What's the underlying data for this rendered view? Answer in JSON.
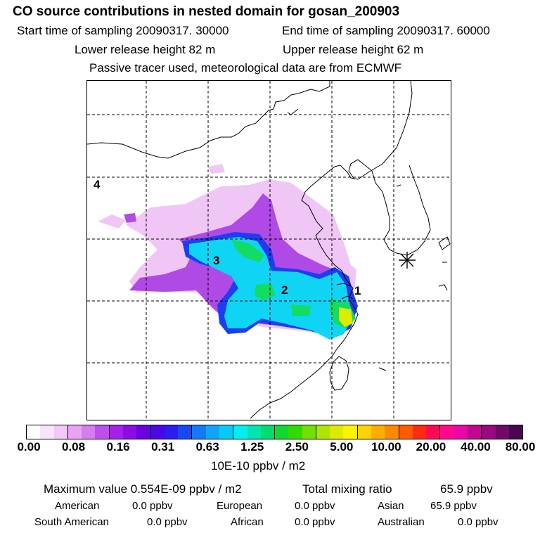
{
  "header": {
    "title": "CO  source contributions in nested domain for gosan_200903",
    "start_time": "Start time of sampling 20090317. 30000",
    "end_time": "End time of sampling 20090317. 60000",
    "lower_release": "Lower release height   82 m",
    "upper_release": "Upper release height   62 m",
    "tracer_note": "Passive tracer used, meteorological data are from ECMWF"
  },
  "map": {
    "region_labels": [
      "4",
      "3",
      "2",
      "1"
    ],
    "receptor_marker": "asterisk-marker"
  },
  "colorbar": {
    "colors": [
      "#ffffff",
      "#f8e4fb",
      "#f1c8f7",
      "#e9a3f2",
      "#d67cf0",
      "#c04eee",
      "#a81fea",
      "#8d0be6",
      "#6a00e0",
      "#4a08e8",
      "#2a1ef0",
      "#1848f4",
      "#127af8",
      "#0ea6fa",
      "#08c9fa",
      "#00f0f0",
      "#00e6b0",
      "#00dc70",
      "#10d830",
      "#30dc00",
      "#74e000",
      "#aee600",
      "#dcec00",
      "#fff200",
      "#ffd200",
      "#ffae00",
      "#ff8a00",
      "#ff5a00",
      "#ff2a10",
      "#ff0a50",
      "#ff0890",
      "#e807a8",
      "#c00890",
      "#980a80",
      "#700a68",
      "#480850"
    ],
    "tick_labels": [
      "0.00",
      "0.08",
      "0.16",
      "0.31",
      "0.63",
      "1.25",
      "2.50",
      "5.00",
      "10.00",
      "20.00",
      "40.00",
      "80.00"
    ],
    "unit": "10E-10 ppbv / m2"
  },
  "stats": {
    "maximum": "Maximum value  0.554E-09 ppbv / m2",
    "total": "Total mixing ratio",
    "total_value": "65.9 ppbv",
    "regions": [
      {
        "label": "American",
        "value": "0.0 ppbv"
      },
      {
        "label": "European",
        "value": "0.0 ppbv"
      },
      {
        "label": "Asian",
        "value": "65.9 ppbv"
      },
      {
        "label": "South American",
        "value": "0.0 ppbv"
      },
      {
        "label": "African",
        "value": "0.0 ppbv"
      },
      {
        "label": "Australian",
        "value": "0.0 ppbv"
      }
    ]
  }
}
